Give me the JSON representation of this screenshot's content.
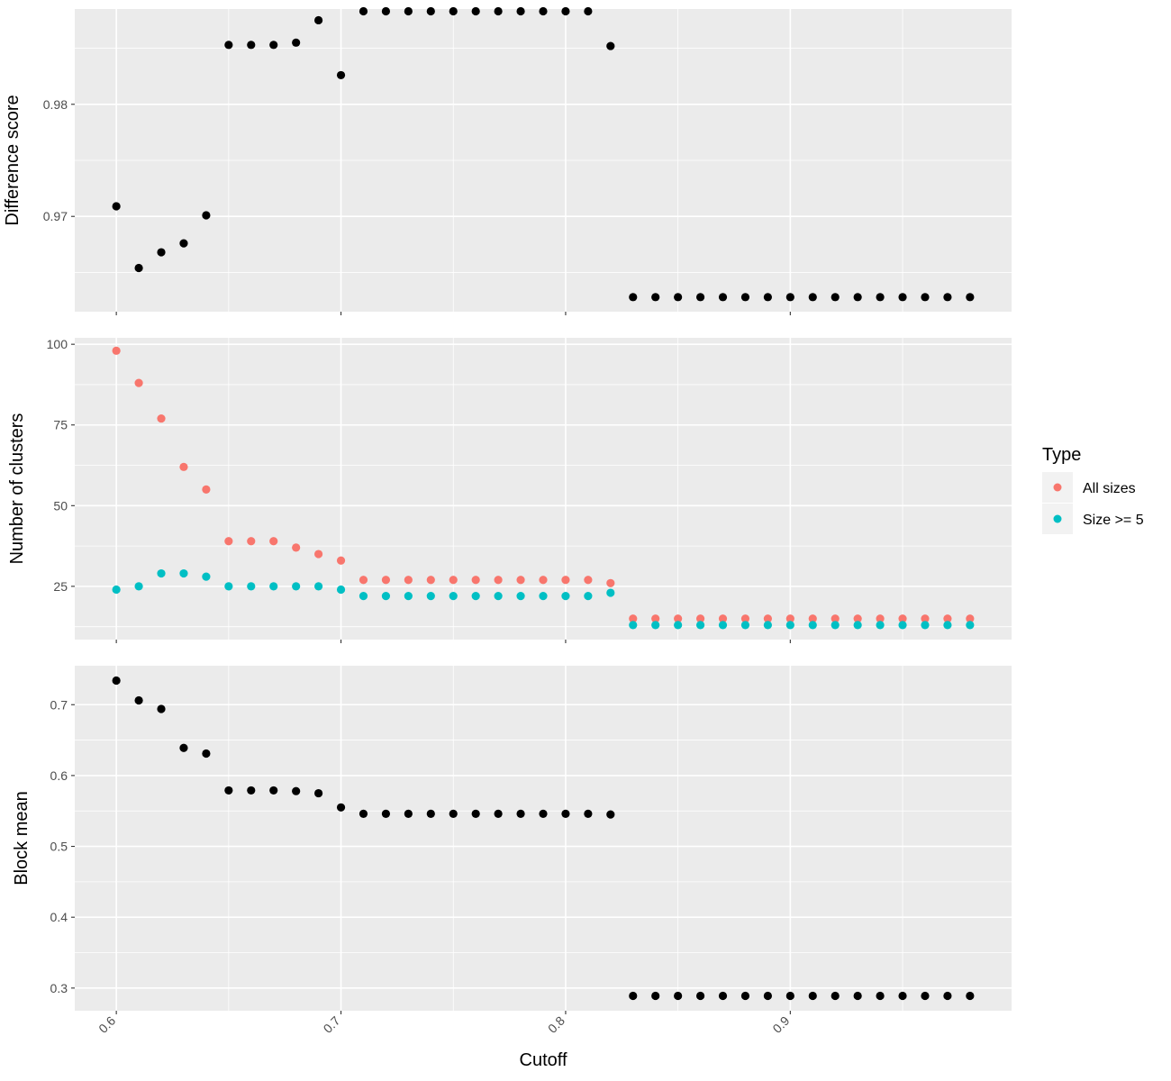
{
  "chart_data": [
    {
      "type": "scatter",
      "ylabel": "Difference score",
      "ylim": [
        0.9615,
        0.9885
      ],
      "yticks": [
        0.97,
        0.98
      ],
      "ytick_labels": [
        "0.97",
        "0.98"
      ],
      "ygrid_minor": [
        0.965,
        0.975,
        0.985
      ],
      "xlim": [
        0.5815,
        0.9985
      ],
      "grid": true,
      "series": [
        {
          "color": "#000000",
          "x": [
            0.6,
            0.61,
            0.62,
            0.63,
            0.64,
            0.65,
            0.66,
            0.67,
            0.68,
            0.69,
            0.7,
            0.71,
            0.72,
            0.73,
            0.74,
            0.75,
            0.76,
            0.77,
            0.78,
            0.79,
            0.8,
            0.81,
            0.82,
            0.83,
            0.84,
            0.85,
            0.86,
            0.87,
            0.88,
            0.89,
            0.9,
            0.91,
            0.92,
            0.93,
            0.94,
            0.95,
            0.96,
            0.97,
            0.98
          ],
          "y": [
            0.9709,
            0.9654,
            0.9668,
            0.9676,
            0.9701,
            0.9853,
            0.9853,
            0.9853,
            0.9855,
            0.9875,
            0.9826,
            0.9883,
            0.9883,
            0.9883,
            0.9883,
            0.9883,
            0.9883,
            0.9883,
            0.9883,
            0.9883,
            0.9883,
            0.9883,
            0.9852,
            0.9628,
            0.9628,
            0.9628,
            0.9628,
            0.9628,
            0.9628,
            0.9628,
            0.9628,
            0.9628,
            0.9628,
            0.9628,
            0.9628,
            0.9628,
            0.9628,
            0.9628,
            0.9628
          ]
        }
      ]
    },
    {
      "type": "scatter",
      "ylabel": "Number of clusters",
      "ylim": [
        8.5,
        102
      ],
      "yticks": [
        25,
        50,
        75,
        100
      ],
      "ytick_labels": [
        "25",
        "50",
        "75",
        "100"
      ],
      "ygrid_minor": [
        12.5,
        37.5,
        62.5,
        87.5
      ],
      "xlim": [
        0.5815,
        0.9985
      ],
      "grid": true,
      "series": [
        {
          "name": "All sizes",
          "color": "#F8766D",
          "x": [
            0.6,
            0.61,
            0.62,
            0.63,
            0.64,
            0.65,
            0.66,
            0.67,
            0.68,
            0.69,
            0.7,
            0.71,
            0.72,
            0.73,
            0.74,
            0.75,
            0.76,
            0.77,
            0.78,
            0.79,
            0.8,
            0.81,
            0.82,
            0.83,
            0.84,
            0.85,
            0.86,
            0.87,
            0.88,
            0.89,
            0.9,
            0.91,
            0.92,
            0.93,
            0.94,
            0.95,
            0.96,
            0.97,
            0.98
          ],
          "y": [
            98,
            88,
            77,
            62,
            55,
            39,
            39,
            39,
            37,
            35,
            33,
            27,
            27,
            27,
            27,
            27,
            27,
            27,
            27,
            27,
            27,
            27,
            26,
            15,
            15,
            15,
            15,
            15,
            15,
            15,
            15,
            15,
            15,
            15,
            15,
            15,
            15,
            15,
            15
          ]
        },
        {
          "name": "Size >= 5",
          "color": "#00BFC4",
          "x": [
            0.6,
            0.61,
            0.62,
            0.63,
            0.64,
            0.65,
            0.66,
            0.67,
            0.68,
            0.69,
            0.7,
            0.71,
            0.72,
            0.73,
            0.74,
            0.75,
            0.76,
            0.77,
            0.78,
            0.79,
            0.8,
            0.81,
            0.82,
            0.83,
            0.84,
            0.85,
            0.86,
            0.87,
            0.88,
            0.89,
            0.9,
            0.91,
            0.92,
            0.93,
            0.94,
            0.95,
            0.96,
            0.97,
            0.98
          ],
          "y": [
            24,
            25,
            29,
            29,
            28,
            25,
            25,
            25,
            25,
            25,
            24,
            22,
            22,
            22,
            22,
            22,
            22,
            22,
            22,
            22,
            22,
            22,
            23,
            13,
            13,
            13,
            13,
            13,
            13,
            13,
            13,
            13,
            13,
            13,
            13,
            13,
            13,
            13,
            13
          ]
        }
      ]
    },
    {
      "type": "scatter",
      "ylabel": "Block mean",
      "xlabel": "Cutoff",
      "ylim": [
        0.268,
        0.755
      ],
      "yticks": [
        0.3,
        0.4,
        0.5,
        0.6,
        0.7
      ],
      "ytick_labels": [
        "0.3",
        "0.4",
        "0.5",
        "0.6",
        "0.7"
      ],
      "ygrid_minor": [
        0.35,
        0.45,
        0.55,
        0.65
      ],
      "xlim": [
        0.5815,
        0.9985
      ],
      "xticks": [
        0.6,
        0.7,
        0.8,
        0.9
      ],
      "xtick_labels": [
        "0.6",
        "0.7",
        "0.8",
        "0.9"
      ],
      "grid": true,
      "series": [
        {
          "color": "#000000",
          "x": [
            0.6,
            0.61,
            0.62,
            0.63,
            0.64,
            0.65,
            0.66,
            0.67,
            0.68,
            0.69,
            0.7,
            0.71,
            0.72,
            0.73,
            0.74,
            0.75,
            0.76,
            0.77,
            0.78,
            0.79,
            0.8,
            0.81,
            0.82,
            0.83,
            0.84,
            0.85,
            0.86,
            0.87,
            0.88,
            0.89,
            0.9,
            0.91,
            0.92,
            0.93,
            0.94,
            0.95,
            0.96,
            0.97,
            0.98
          ],
          "y": [
            0.734,
            0.706,
            0.694,
            0.639,
            0.631,
            0.579,
            0.579,
            0.579,
            0.578,
            0.575,
            0.555,
            0.546,
            0.546,
            0.546,
            0.546,
            0.546,
            0.546,
            0.546,
            0.546,
            0.546,
            0.546,
            0.546,
            0.545,
            0.289,
            0.289,
            0.289,
            0.289,
            0.289,
            0.289,
            0.289,
            0.289,
            0.289,
            0.289,
            0.289,
            0.289,
            0.289,
            0.289,
            0.289,
            0.289
          ]
        }
      ]
    }
  ],
  "xgrid_minor": [
    0.65,
    0.75,
    0.85,
    0.95
  ],
  "legend": {
    "title": "Type",
    "position": "right",
    "items": [
      {
        "label": "All sizes",
        "color": "#F8766D"
      },
      {
        "label": "Size >= 5",
        "color": "#00BFC4"
      }
    ]
  }
}
